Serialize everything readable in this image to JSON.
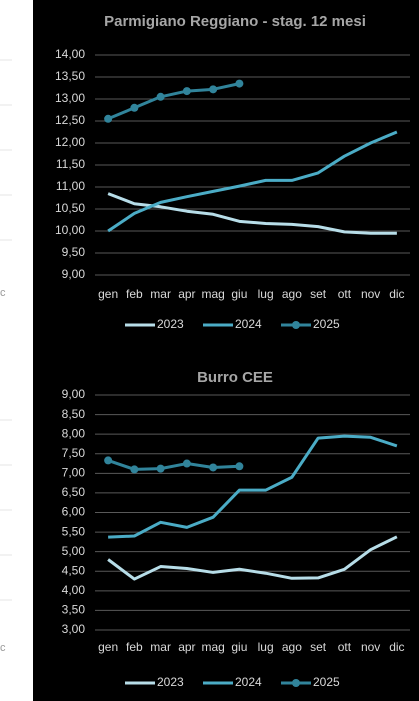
{
  "side_labels": [
    "c",
    "c"
  ],
  "chart_data": [
    {
      "type": "line",
      "title": "Parmigiano Reggiano - stag. 12 mesi",
      "categories": [
        "gen",
        "feb",
        "mar",
        "apr",
        "mag",
        "giu",
        "lug",
        "ago",
        "set",
        "ott",
        "nov",
        "dic"
      ],
      "series": [
        {
          "name": "2023",
          "color": "#b7dde8",
          "values": [
            10.85,
            10.62,
            10.55,
            10.45,
            10.38,
            10.22,
            10.17,
            10.15,
            10.1,
            9.98,
            9.95,
            9.95
          ]
        },
        {
          "name": "2024",
          "color": "#4bacc6",
          "values": [
            10.0,
            10.4,
            10.65,
            10.78,
            10.9,
            11.02,
            11.15,
            11.15,
            11.32,
            11.7,
            12.0,
            12.25
          ]
        },
        {
          "name": "2025",
          "color": "#31849b",
          "marker": true,
          "values": [
            12.55,
            12.8,
            13.05,
            13.18,
            13.22,
            13.35,
            null,
            null,
            null,
            null,
            null,
            null
          ]
        }
      ],
      "ylim": [
        9,
        14
      ],
      "yticks": [
        {
          "value": 9,
          "label": "9,00"
        },
        {
          "value": 9.5,
          "label": "9,50"
        },
        {
          "value": 10,
          "label": "10,00"
        },
        {
          "value": 10.5,
          "label": "10,50"
        },
        {
          "value": 11,
          "label": "11,00"
        },
        {
          "value": 11.5,
          "label": "11,50"
        },
        {
          "value": 12,
          "label": "12,00"
        },
        {
          "value": 12.5,
          "label": "12,50"
        },
        {
          "value": 13,
          "label": "13,00"
        },
        {
          "value": 13.5,
          "label": "13,50"
        },
        {
          "value": 14,
          "label": "14,00"
        }
      ],
      "grid": true,
      "legend": "bottom"
    },
    {
      "type": "line",
      "title": "Burro CEE",
      "categories": [
        "gen",
        "feb",
        "mar",
        "apr",
        "mag",
        "giu",
        "lug",
        "ago",
        "set",
        "ott",
        "nov",
        "dic"
      ],
      "series": [
        {
          "name": "2023",
          "color": "#b7dde8",
          "values": [
            4.8,
            4.3,
            4.62,
            4.57,
            4.47,
            4.55,
            4.45,
            4.32,
            4.33,
            4.55,
            5.05,
            5.38
          ]
        },
        {
          "name": "2024",
          "color": "#4bacc6",
          "values": [
            5.37,
            5.4,
            5.75,
            5.62,
            5.88,
            6.57,
            6.57,
            6.9,
            7.9,
            7.95,
            7.92,
            7.7
          ]
        },
        {
          "name": "2025",
          "color": "#31849b",
          "marker": true,
          "values": [
            7.33,
            7.1,
            7.12,
            7.25,
            7.15,
            7.18,
            null,
            null,
            null,
            null,
            null,
            null
          ]
        }
      ],
      "ylim": [
        3,
        9
      ],
      "yticks": [
        {
          "value": 3,
          "label": "3,00"
        },
        {
          "value": 3.5,
          "label": "3,50"
        },
        {
          "value": 4,
          "label": "4,00"
        },
        {
          "value": 4.5,
          "label": "4,50"
        },
        {
          "value": 5,
          "label": "5,00"
        },
        {
          "value": 5.5,
          "label": "5,50"
        },
        {
          "value": 6,
          "label": "6,00"
        },
        {
          "value": 6.5,
          "label": "6,50"
        },
        {
          "value": 7,
          "label": "7,00"
        },
        {
          "value": 7.5,
          "label": "7,50"
        },
        {
          "value": 8,
          "label": "8,00"
        },
        {
          "value": 8.5,
          "label": "8,50"
        },
        {
          "value": 9,
          "label": "9,00"
        }
      ],
      "grid": true,
      "legend": "bottom"
    }
  ]
}
